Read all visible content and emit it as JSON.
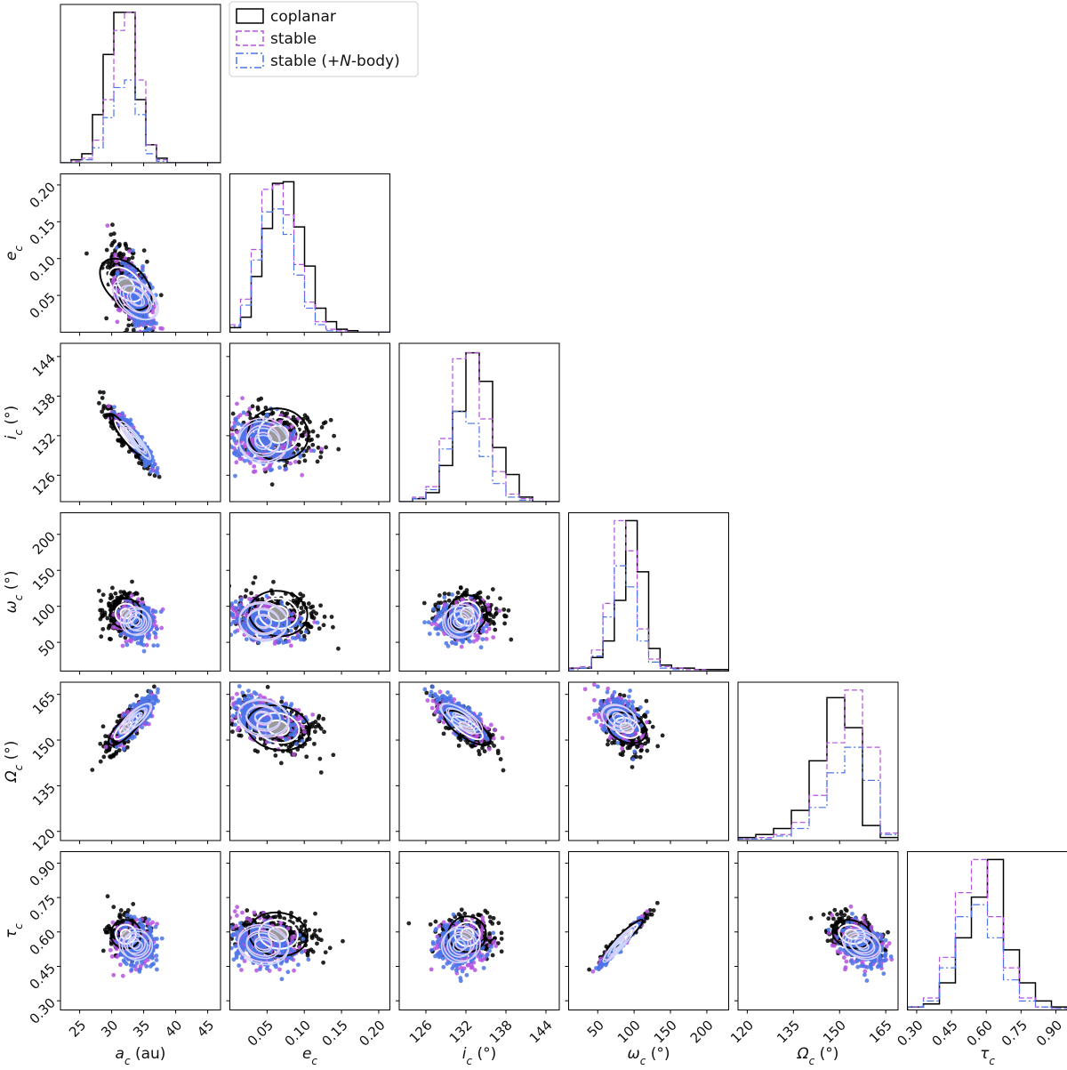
{
  "chart_data": {
    "type": "corner",
    "params": [
      {
        "id": "a",
        "label_base": "a",
        "label_unit": " (au)",
        "ticks": [
          "25",
          "30",
          "35",
          "40",
          "45"
        ],
        "tick_values": [
          25,
          30,
          35,
          40,
          45
        ],
        "range": [
          22,
          47
        ]
      },
      {
        "id": "e",
        "label_base": "e",
        "label_unit": "",
        "ticks": [
          "0.05",
          "0.10",
          "0.15",
          "0.20"
        ],
        "tick_values": [
          0.05,
          0.1,
          0.15,
          0.2
        ],
        "range": [
          0.0,
          0.215
        ]
      },
      {
        "id": "i",
        "label_base": "i",
        "label_unit": " (°)",
        "ticks": [
          "126",
          "132",
          "138",
          "144"
        ],
        "tick_values": [
          126,
          132,
          138,
          144
        ],
        "range": [
          122,
          146
        ]
      },
      {
        "id": "omega",
        "label_base": "ω",
        "label_unit": " (°)",
        "ticks": [
          "50",
          "100",
          "150",
          "200"
        ],
        "tick_values": [
          50,
          100,
          150,
          200
        ],
        "range": [
          10,
          230
        ]
      },
      {
        "id": "Omega",
        "label_base": "Ω",
        "label_unit": " (°)",
        "ticks": [
          "120",
          "135",
          "150",
          "165"
        ],
        "tick_values": [
          120,
          135,
          150,
          165
        ],
        "range": [
          117,
          169
        ]
      },
      {
        "id": "tau",
        "label_base": "τ",
        "label_unit": "",
        "ticks": [
          "0.30",
          "0.45",
          "0.60",
          "0.75",
          "0.90"
        ],
        "tick_values": [
          0.3,
          0.45,
          0.6,
          0.75,
          0.9
        ],
        "range": [
          0.26,
          0.95
        ]
      }
    ],
    "label_subscript": "c",
    "legend": {
      "placement": "top-left",
      "entries": [
        {
          "label": "coplanar",
          "style": "solid",
          "color": "#000000"
        },
        {
          "label_prefix": "stable",
          "style": "dashed",
          "color": "#b452e0"
        },
        {
          "label_prefix": "stable (+",
          "label_italic": "N",
          "label_suffix": "-body)",
          "style": "dashdot",
          "color": "#4a74e8"
        }
      ]
    },
    "series": [
      {
        "name": "coplanar",
        "color": "#000000",
        "mean": [
          32.2,
          0.065,
          132.2,
          90,
          154,
          0.59
        ],
        "sd": [
          1.3,
          0.025,
          1.8,
          12,
          3.5,
          0.035
        ],
        "hist_heights": [
          [
            0,
            0.02,
            0.06,
            0.32,
            0.72,
            1.0,
            1.0,
            0.42,
            0.12,
            0.03,
            0,
            0,
            0,
            0,
            0
          ],
          [
            0.03,
            0.1,
            0.37,
            0.69,
            0.99,
            1.0,
            0.7,
            0.44,
            0.16,
            0.07,
            0.02,
            0.01,
            0,
            0,
            0
          ],
          [
            0,
            0.02,
            0.06,
            0.24,
            0.6,
            0.99,
            0.8,
            0.36,
            0.18,
            0.03,
            0,
            0
          ],
          [
            0.02,
            0.02,
            0.09,
            0.2,
            0.47,
            1.0,
            0.66,
            0.15,
            0.04,
            0.02,
            0.02,
            0.01,
            0.01,
            0.01
          ],
          [
            0.02,
            0.04,
            0.08,
            0.2,
            0.53,
            0.95,
            0.75,
            0.1,
            0.02
          ],
          [
            0.02,
            0.04,
            0.18,
            0.48,
            0.75,
            1.0,
            0.4,
            0.18,
            0.06,
            0.02
          ]
        ]
      },
      {
        "name": "stable",
        "color": "#b452e0",
        "mean": [
          33.6,
          0.045,
          131.4,
          80,
          157,
          0.55
        ],
        "sd": [
          1.2,
          0.02,
          1.6,
          11,
          3.0,
          0.04
        ],
        "hist_heights": [
          [
            0,
            0.01,
            0.03,
            0.15,
            0.42,
            0.88,
            1.0,
            0.55,
            0.12,
            0.02,
            0,
            0,
            0,
            0,
            0
          ],
          [
            0.05,
            0.22,
            0.55,
            0.95,
            0.98,
            0.78,
            0.45,
            0.2,
            0.07,
            0.02,
            0.01,
            0,
            0,
            0,
            0
          ],
          [
            0,
            0.03,
            0.1,
            0.42,
            0.95,
            0.99,
            0.55,
            0.2,
            0.05,
            0.02,
            0,
            0
          ],
          [
            0.02,
            0.03,
            0.14,
            0.45,
            1.0,
            0.8,
            0.28,
            0.08,
            0.03,
            0.02,
            0.01,
            0.01,
            0,
            0
          ],
          [
            0.01,
            0.02,
            0.04,
            0.12,
            0.3,
            0.65,
            1.0,
            0.62,
            0.05
          ],
          [
            0.02,
            0.08,
            0.35,
            0.78,
            1.0,
            0.62,
            0.28,
            0.08,
            0.02,
            0.01
          ]
        ]
      },
      {
        "name": "stable (+N-body)",
        "color": "#4a74e8",
        "mean": [
          34.0,
          0.045,
          131.0,
          78,
          157.5,
          0.54
        ],
        "sd": [
          1.1,
          0.02,
          1.5,
          11,
          2.8,
          0.04
        ],
        "hist_heights": [
          [
            0,
            0,
            0.02,
            0.1,
            0.3,
            0.5,
            0.55,
            0.32,
            0.06,
            0.01,
            0,
            0,
            0,
            0,
            0
          ],
          [
            0.04,
            0.18,
            0.48,
            0.8,
            0.82,
            0.65,
            0.38,
            0.16,
            0.05,
            0.01,
            0,
            0,
            0,
            0,
            0
          ],
          [
            0,
            0.02,
            0.08,
            0.35,
            0.6,
            0.52,
            0.3,
            0.12,
            0.03,
            0.01,
            0,
            0
          ],
          [
            0.01,
            0.02,
            0.1,
            0.36,
            0.7,
            0.56,
            0.2,
            0.06,
            0.02,
            0.01,
            0,
            0,
            0,
            0
          ],
          [
            0.01,
            0.01,
            0.03,
            0.08,
            0.22,
            0.45,
            0.62,
            0.4,
            0.04
          ],
          [
            0.02,
            0.06,
            0.28,
            0.62,
            0.7,
            0.48,
            0.2,
            0.06,
            0.02,
            0.01
          ]
        ]
      }
    ],
    "correlations": {
      "a-e": -0.45,
      "a-i": -0.92,
      "e-i": -0.15,
      "a-omega": -0.05,
      "e-omega": -0.25,
      "i-omega": -0.05,
      "a-Omega": 0.78,
      "e-Omega": -0.35,
      "i-Omega": -0.75,
      "omega-Omega": -0.35,
      "a-tau": -0.05,
      "e-tau": -0.3,
      "i-tau": -0.05,
      "omega-tau": 0.97,
      "Omega-tau": -0.35
    },
    "grid": false
  }
}
